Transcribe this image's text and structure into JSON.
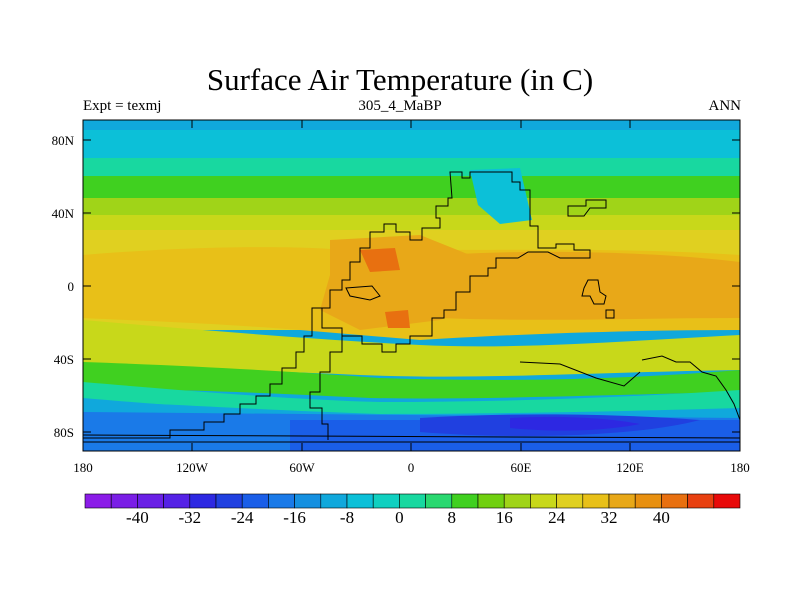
{
  "title": "Surface Air Temperature (in C)",
  "subtitle_left": "Expt = texmj",
  "subtitle_center": "305_4_MaBP",
  "subtitle_right": "ANN",
  "lat_labels": [
    "80N",
    "40N",
    "0",
    "40S",
    "80S"
  ],
  "lon_labels": [
    "180",
    "120W",
    "60W",
    "0",
    "60E",
    "120E",
    "180"
  ],
  "colorbar": {
    "labels": [
      "-40",
      "-32",
      "-24",
      "-16",
      "-8",
      "0",
      "8",
      "16",
      "24",
      "32",
      "40"
    ],
    "colors": [
      "#8b1ce8",
      "#7a1ee6",
      "#6a20e6",
      "#5522e6",
      "#2d28e2",
      "#2040e0",
      "#1a5ee8",
      "#1a7ae8",
      "#1590e0",
      "#10a8dc",
      "#0cc0d8",
      "#10d0c0",
      "#18d8a0",
      "#2ad870",
      "#40d020",
      "#70d010",
      "#a0d418",
      "#c8d81a",
      "#e0d020",
      "#e8c018",
      "#e8a818",
      "#e89010",
      "#e87010",
      "#e84010",
      "#e80a0a"
    ]
  },
  "map_colors": {
    "polar": "#10a8dc",
    "cool": "#0cc0d8",
    "teal": "#18d8a0",
    "green": "#40d020",
    "lime": "#a0d418",
    "yellow": "#e0d020",
    "gold": "#e8c018",
    "orange": "#e8a818",
    "deep_orange": "#e89010",
    "red_orange": "#e87010",
    "blue": "#1a5ee8",
    "mid_blue": "#1a7ae8",
    "deep_blue": "#2d28e2"
  }
}
